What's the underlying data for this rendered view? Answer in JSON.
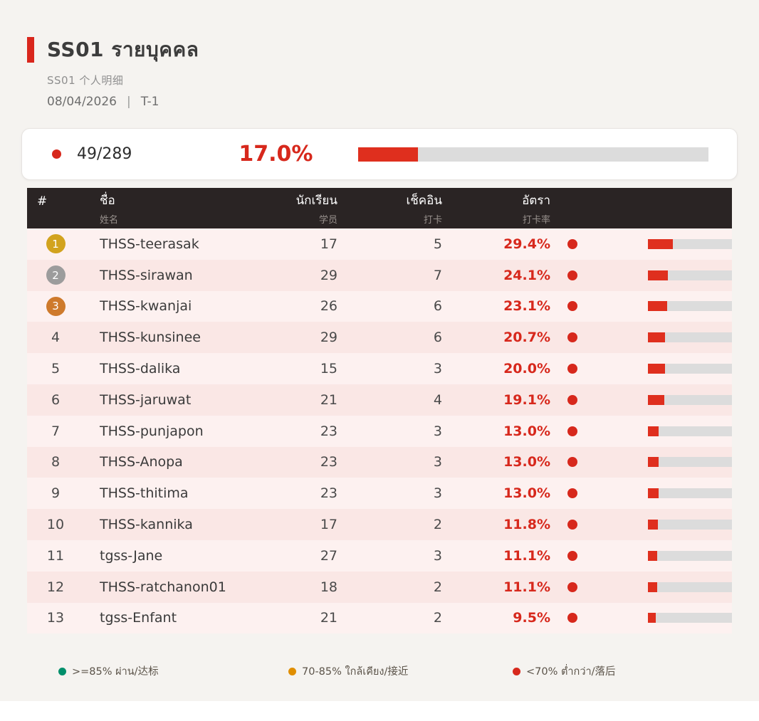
{
  "header": {
    "title": "SS01  รายบุคคล",
    "subtitle": "SS01  个人明细",
    "date": "08/04/2026",
    "separator": "|",
    "shift": "T-1"
  },
  "summary": {
    "count": "49/289",
    "percent": "17.0%",
    "percent_value": 17.0,
    "accent_color": "#d7281c"
  },
  "table": {
    "columns": [
      {
        "label": "#",
        "sublabel": ""
      },
      {
        "label": "ชื่อ",
        "sublabel": "姓名"
      },
      {
        "label": "นักเรียน",
        "sublabel": "学员"
      },
      {
        "label": "เช็คอิน",
        "sublabel": "打卡"
      },
      {
        "label": "อัตรา",
        "sublabel": "打卡率"
      }
    ],
    "medal_colors": {
      "1": "#d2a31e",
      "2": "#9c9c9c",
      "3": "#ce7a2c"
    },
    "rows": [
      {
        "rank": 1,
        "name": "THSS-teerasak",
        "students": 17,
        "checkins": 5,
        "rate": "29.4%",
        "rate_value": 29.4,
        "status_color": "#d7281c"
      },
      {
        "rank": 2,
        "name": "THSS-sirawan",
        "students": 29,
        "checkins": 7,
        "rate": "24.1%",
        "rate_value": 24.1,
        "status_color": "#d7281c"
      },
      {
        "rank": 3,
        "name": "THSS-kwanjai",
        "students": 26,
        "checkins": 6,
        "rate": "23.1%",
        "rate_value": 23.1,
        "status_color": "#d7281c"
      },
      {
        "rank": 4,
        "name": "THSS-kunsinee",
        "students": 29,
        "checkins": 6,
        "rate": "20.7%",
        "rate_value": 20.7,
        "status_color": "#d7281c"
      },
      {
        "rank": 5,
        "name": "THSS-dalika",
        "students": 15,
        "checkins": 3,
        "rate": "20.0%",
        "rate_value": 20.0,
        "status_color": "#d7281c"
      },
      {
        "rank": 6,
        "name": "THSS-jaruwat",
        "students": 21,
        "checkins": 4,
        "rate": "19.1%",
        "rate_value": 19.1,
        "status_color": "#d7281c"
      },
      {
        "rank": 7,
        "name": "THSS-punjapon",
        "students": 23,
        "checkins": 3,
        "rate": "13.0%",
        "rate_value": 13.0,
        "status_color": "#d7281c"
      },
      {
        "rank": 8,
        "name": "THSS-Anopa",
        "students": 23,
        "checkins": 3,
        "rate": "13.0%",
        "rate_value": 13.0,
        "status_color": "#d7281c"
      },
      {
        "rank": 9,
        "name": "THSS-thitima",
        "students": 23,
        "checkins": 3,
        "rate": "13.0%",
        "rate_value": 13.0,
        "status_color": "#d7281c"
      },
      {
        "rank": 10,
        "name": "THSS-kannika",
        "students": 17,
        "checkins": 2,
        "rate": "11.8%",
        "rate_value": 11.8,
        "status_color": "#d7281c"
      },
      {
        "rank": 11,
        "name": "tgss-Jane",
        "students": 27,
        "checkins": 3,
        "rate": "11.1%",
        "rate_value": 11.1,
        "status_color": "#d7281c"
      },
      {
        "rank": 12,
        "name": "THSS-ratchanon01",
        "students": 18,
        "checkins": 2,
        "rate": "11.1%",
        "rate_value": 11.1,
        "status_color": "#d7281c"
      },
      {
        "rank": 13,
        "name": "tgss-Enfant",
        "students": 21,
        "checkins": 2,
        "rate": "9.5%",
        "rate_value": 9.5,
        "status_color": "#d7281c"
      }
    ]
  },
  "legend": [
    {
      "label": ">=85% ผ่าน/达标",
      "color": "#008f6b"
    },
    {
      "label": "70-85% ใกล้เคียง/接近",
      "color": "#e08e00"
    },
    {
      "label": "<70% ต่ำกว่า/落后",
      "color": "#d7281c"
    }
  ]
}
